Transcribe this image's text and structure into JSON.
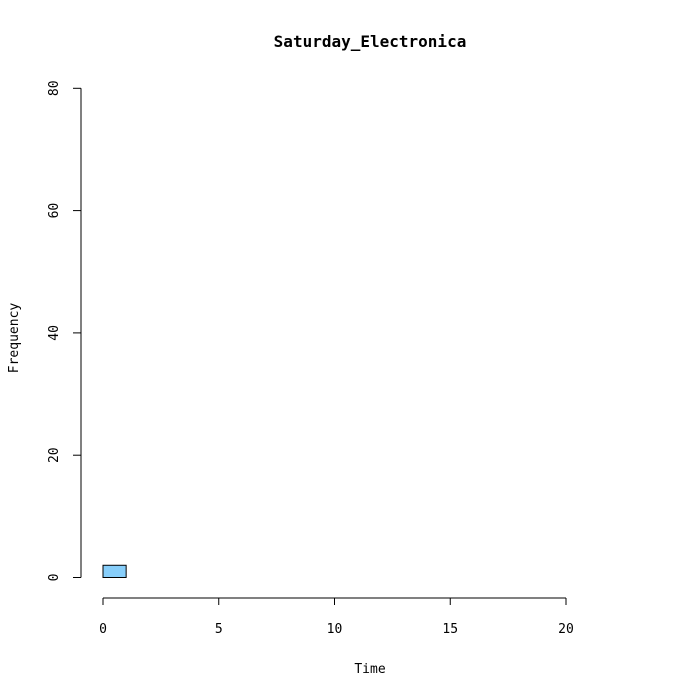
{
  "chart_data": {
    "type": "bar",
    "title": "Saturday_Electronica",
    "xlabel": "Time",
    "ylabel": "Frequency",
    "xlim": [
      0,
      24
    ],
    "ylim": [
      0,
      80
    ],
    "xticks": [
      0,
      5,
      10,
      15,
      20
    ],
    "yticks": [
      0,
      20,
      40,
      60,
      80
    ],
    "bin_width": 1,
    "bins": [
      0,
      1,
      2,
      3,
      4,
      5,
      6,
      7,
      8,
      9,
      10,
      11,
      12,
      13,
      14,
      15,
      16,
      17,
      18,
      19,
      20,
      21,
      22,
      23
    ],
    "values": [
      2,
      0,
      0,
      0,
      0,
      0,
      0,
      0,
      0,
      0,
      0,
      0,
      0,
      0,
      0,
      0,
      0,
      0,
      0,
      0,
      0,
      0,
      0,
      0
    ],
    "bar_color": "#87CEFA",
    "border_color": "#000000"
  }
}
